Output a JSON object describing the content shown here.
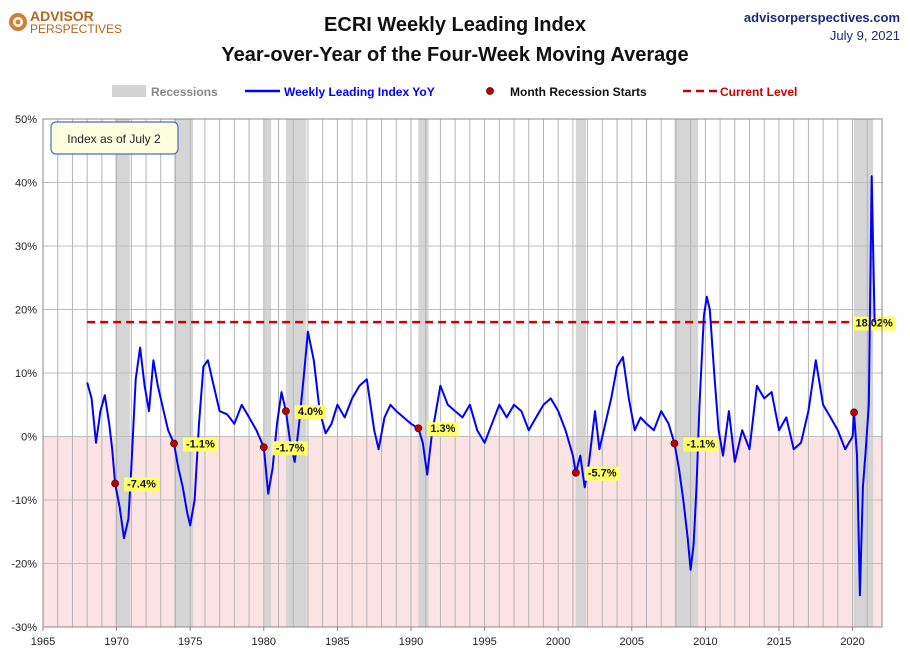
{
  "header": {
    "logo_line1": "ADVISOR",
    "logo_line2": "PERSPECTIVES",
    "site": "advisorperspectives.com",
    "date": "July 9, 2021"
  },
  "colors": {
    "series": "#0000ff",
    "recession_band": "#d3d3d3",
    "negative_zone": "#fbe3e3",
    "current_level": "#cc0000",
    "marker": "#c00000",
    "label_bg": "#ffff66",
    "logo": "#b5651d"
  },
  "chart_data": {
    "type": "line",
    "title": "ECRI Weekly Leading Index",
    "subtitle": "Year-over-Year of the Four-Week Moving Average",
    "legend": [
      "Recessions",
      "Weekly Leading Index YoY",
      "Month Recession Starts",
      "Current Level"
    ],
    "legend_position": "top",
    "note": "Index as of July 2",
    "xlim": [
      1965,
      2022
    ],
    "xticks": [
      1965,
      1970,
      1975,
      1980,
      1985,
      1990,
      1995,
      2000,
      2005,
      2010,
      2015,
      2020
    ],
    "ylim": [
      -30,
      50
    ],
    "yticks": [
      -30,
      -20,
      -10,
      0,
      10,
      20,
      30,
      40,
      50
    ],
    "ytick_labels": [
      "-30%",
      "-20%",
      "-10%",
      "0%",
      "10%",
      "20%",
      "30%",
      "40%",
      "50%"
    ],
    "grid": true,
    "recessions": [
      [
        1969.9,
        1970.9
      ],
      [
        1973.9,
        1975.2
      ],
      [
        1980.0,
        1980.5
      ],
      [
        1981.5,
        1982.9
      ],
      [
        1990.5,
        1991.2
      ],
      [
        2001.2,
        2001.9
      ],
      [
        2007.9,
        2009.5
      ],
      [
        2020.1,
        2021.4
      ]
    ],
    "current_level": 18.02,
    "current_level_label": "18.02%",
    "recession_starts": [
      {
        "x": 1969.9,
        "y": -7.4,
        "label": "-7.4%"
      },
      {
        "x": 1973.9,
        "y": -1.1,
        "label": "-1.1%"
      },
      {
        "x": 1980.0,
        "y": -1.7,
        "label": "-1.7%"
      },
      {
        "x": 1981.5,
        "y": 4.0,
        "label": "4.0%"
      },
      {
        "x": 1990.5,
        "y": 1.3,
        "label": "1.3%"
      },
      {
        "x": 2001.2,
        "y": -5.7,
        "label": "-5.7%"
      },
      {
        "x": 2007.9,
        "y": -1.1,
        "label": "-1.1%"
      },
      {
        "x": 2020.1,
        "y": 3.8,
        "label": ""
      }
    ],
    "series": [
      {
        "name": "Weekly Leading Index YoY",
        "x": [
          1968.0,
          1968.3,
          1968.6,
          1968.9,
          1969.2,
          1969.5,
          1969.7,
          1969.9,
          1970.2,
          1970.5,
          1970.8,
          1971.0,
          1971.3,
          1971.6,
          1971.9,
          1972.2,
          1972.5,
          1972.8,
          1973.1,
          1973.5,
          1973.9,
          1974.2,
          1974.5,
          1974.8,
          1975.0,
          1975.3,
          1975.6,
          1975.9,
          1976.2,
          1976.6,
          1977.0,
          1977.5,
          1978.0,
          1978.5,
          1979.0,
          1979.5,
          1980.0,
          1980.3,
          1980.6,
          1980.9,
          1981.2,
          1981.5,
          1981.8,
          1982.1,
          1982.4,
          1982.7,
          1983.0,
          1983.4,
          1983.8,
          1984.2,
          1984.6,
          1985.0,
          1985.5,
          1986.0,
          1986.5,
          1987.0,
          1987.5,
          1987.8,
          1988.2,
          1988.6,
          1989.0,
          1989.5,
          1990.0,
          1990.5,
          1990.8,
          1991.1,
          1991.4,
          1991.7,
          1992.0,
          1992.5,
          1993.0,
          1993.5,
          1994.0,
          1994.5,
          1995.0,
          1995.5,
          1996.0,
          1996.5,
          1997.0,
          1997.5,
          1998.0,
          1998.5,
          1999.0,
          1999.5,
          2000.0,
          2000.5,
          2001.0,
          2001.2,
          2001.5,
          2001.8,
          2002.1,
          2002.5,
          2002.8,
          2003.2,
          2003.6,
          2004.0,
          2004.4,
          2004.8,
          2005.2,
          2005.6,
          2006.0,
          2006.5,
          2007.0,
          2007.5,
          2007.9,
          2008.2,
          2008.5,
          2008.8,
          2009.0,
          2009.2,
          2009.4,
          2009.6,
          2009.9,
          2010.1,
          2010.3,
          2010.6,
          2010.9,
          2011.2,
          2011.6,
          2012.0,
          2012.5,
          2013.0,
          2013.5,
          2014.0,
          2014.5,
          2015.0,
          2015.5,
          2016.0,
          2016.5,
          2017.0,
          2017.5,
          2018.0,
          2018.5,
          2019.0,
          2019.5,
          2020.0,
          2020.1,
          2020.3,
          2020.5,
          2020.7,
          2020.9,
          2021.1,
          2021.3,
          2021.5
        ],
        "values": [
          8.5,
          6.0,
          -1.0,
          4.0,
          6.5,
          2.0,
          -2.0,
          -7.4,
          -11.0,
          -16.0,
          -13.0,
          -5.0,
          9.0,
          14.0,
          8.0,
          4.0,
          12.0,
          8.0,
          5.0,
          1.0,
          -1.1,
          -5.0,
          -8.0,
          -12.0,
          -14.0,
          -10.0,
          2.0,
          11.0,
          12.0,
          8.0,
          4.0,
          3.5,
          2.0,
          5.0,
          3.0,
          1.0,
          -1.7,
          -9.0,
          -5.0,
          2.0,
          7.0,
          4.0,
          -1.0,
          -4.0,
          2.0,
          9.0,
          16.5,
          12.0,
          4.0,
          0.5,
          2.0,
          5.0,
          3.0,
          6.0,
          8.0,
          9.0,
          1.0,
          -2.0,
          3.0,
          5.0,
          4.0,
          3.0,
          2.0,
          1.3,
          -1.0,
          -6.0,
          0.0,
          4.0,
          8.0,
          5.0,
          4.0,
          3.0,
          5.0,
          1.0,
          -1.0,
          2.0,
          5.0,
          3.0,
          5.0,
          4.0,
          1.0,
          3.0,
          5.0,
          6.0,
          4.0,
          1.0,
          -3.0,
          -5.7,
          -3.0,
          -8.0,
          -4.0,
          4.0,
          -2.0,
          2.0,
          6.0,
          11.0,
          12.5,
          6.0,
          1.0,
          3.0,
          2.0,
          1.0,
          4.0,
          2.0,
          -1.1,
          -5.0,
          -10.0,
          -16.0,
          -21.0,
          -17.0,
          -8.0,
          5.0,
          19.0,
          22.0,
          20.0,
          10.0,
          1.0,
          -3.0,
          4.0,
          -4.0,
          1.0,
          -2.0,
          8.0,
          6.0,
          7.0,
          1.0,
          3.0,
          -2.0,
          -1.0,
          4.0,
          12.0,
          5.0,
          3.0,
          1.0,
          -2.0,
          0.0,
          3.8,
          -3.0,
          -25.0,
          -8.0,
          -2.0,
          5.0,
          41.0,
          18.0
        ]
      }
    ]
  }
}
